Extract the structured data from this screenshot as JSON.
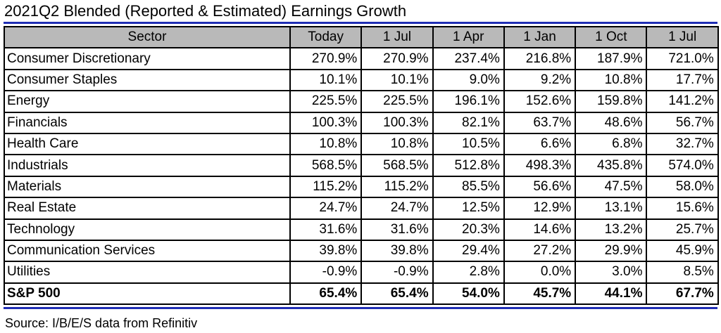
{
  "title": "2021Q2 Blended (Reported & Estimated) Earnings Growth",
  "source": "Source: I/B/E/S data from Refinitiv",
  "colors": {
    "rule": "#1f2db4",
    "header_bg": "#b9b9b9"
  },
  "chart_data": {
    "type": "table",
    "title": "2021Q2 Blended (Reported & Estimated) Earnings Growth",
    "columns": [
      "Sector",
      "Today",
      "1 Jul",
      "1 Apr",
      "1 Jan",
      "1 Oct",
      "1 Jul"
    ],
    "rows": [
      {
        "sector": "Consumer Discretionary",
        "values": [
          "270.9%",
          "270.9%",
          "237.4%",
          "216.8%",
          "187.9%",
          "721.0%"
        ]
      },
      {
        "sector": "Consumer Staples",
        "values": [
          "10.1%",
          "10.1%",
          "9.0%",
          "9.2%",
          "10.8%",
          "17.7%"
        ]
      },
      {
        "sector": "Energy",
        "values": [
          "225.5%",
          "225.5%",
          "196.1%",
          "152.6%",
          "159.8%",
          "141.2%"
        ]
      },
      {
        "sector": "Financials",
        "values": [
          "100.3%",
          "100.3%",
          "82.1%",
          "63.7%",
          "48.6%",
          "56.7%"
        ]
      },
      {
        "sector": "Health Care",
        "values": [
          "10.8%",
          "10.8%",
          "10.5%",
          "6.6%",
          "6.8%",
          "32.7%"
        ]
      },
      {
        "sector": "Industrials",
        "values": [
          "568.5%",
          "568.5%",
          "512.8%",
          "498.3%",
          "435.8%",
          "574.0%"
        ]
      },
      {
        "sector": "Materials",
        "values": [
          "115.2%",
          "115.2%",
          "85.5%",
          "56.6%",
          "47.5%",
          "58.0%"
        ]
      },
      {
        "sector": "Real Estate",
        "values": [
          "24.7%",
          "24.7%",
          "12.5%",
          "12.9%",
          "13.1%",
          "15.6%"
        ]
      },
      {
        "sector": "Technology",
        "values": [
          "31.6%",
          "31.6%",
          "20.3%",
          "14.6%",
          "13.2%",
          "25.7%"
        ]
      },
      {
        "sector": "Communication Services",
        "values": [
          "39.8%",
          "39.8%",
          "29.4%",
          "27.2%",
          "29.9%",
          "45.9%"
        ]
      },
      {
        "sector": "Utilities",
        "values": [
          "-0.9%",
          "-0.9%",
          "2.8%",
          "0.0%",
          "3.0%",
          "8.5%"
        ]
      }
    ],
    "total": {
      "sector": "S&P 500",
      "values": [
        "65.4%",
        "65.4%",
        "54.0%",
        "45.7%",
        "44.1%",
        "67.7%"
      ]
    }
  }
}
